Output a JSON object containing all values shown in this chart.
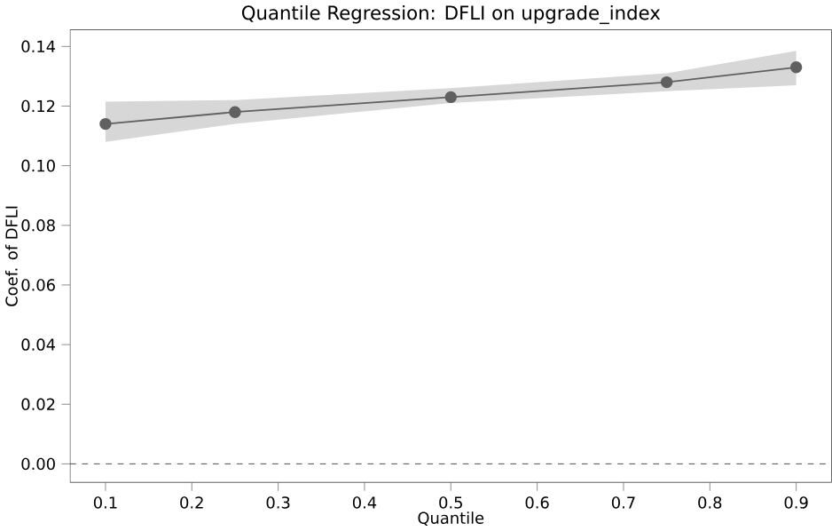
{
  "chart_data": {
    "type": "line",
    "title": "Quantile Regression: DFLI on upgrade_index",
    "xlabel": "Quantile",
    "ylabel": "Coef. of DFLI",
    "x": [
      0.1,
      0.25,
      0.5,
      0.75,
      0.9
    ],
    "series": [
      {
        "color": "#606060",
        "values": [
          0.114,
          0.118,
          0.123,
          0.128,
          0.133
        ],
        "lower": [
          0.108,
          0.114,
          0.121,
          0.125,
          0.127
        ],
        "upper": [
          0.1215,
          0.122,
          0.126,
          0.131,
          0.1385
        ]
      }
    ],
    "marker": "circle",
    "line_style": "solid",
    "grid": false,
    "xlim": [
      0.059,
      0.941
    ],
    "ylim": [
      -0.0062,
      0.1456
    ],
    "xticks": [
      0.1,
      0.2,
      0.3,
      0.4,
      0.5,
      0.6,
      0.7,
      0.8,
      0.9
    ],
    "yticks": [
      {
        "value": 0,
        "label": "0.00"
      },
      0.02,
      0.04,
      0.06,
      0.08,
      {
        "value": 0.1,
        "label": "0.10"
      },
      0.12,
      0.14
    ],
    "ref_lines": [
      {
        "axis": "y",
        "value": 0,
        "color": "#000000",
        "line_style": "dashed"
      }
    ]
  }
}
